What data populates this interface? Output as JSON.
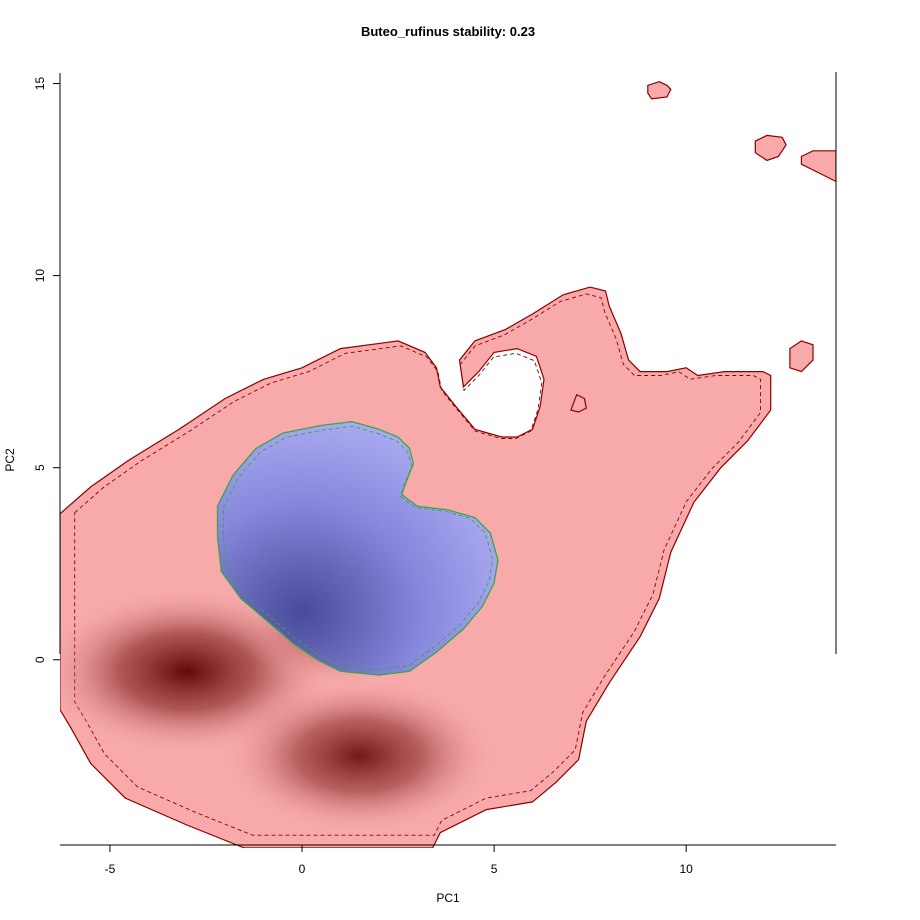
{
  "chart_data": {
    "type": "heatmap",
    "title": "Buteo_rufinus stability: 0.23",
    "xlabel": "PC1",
    "ylabel": "PC2",
    "xlim": [
      -6.3,
      13.9
    ],
    "ylim": [
      -4.9,
      15.3
    ],
    "x_ticks": [
      -5,
      0,
      5,
      10
    ],
    "y_ticks": [
      0,
      5,
      10,
      15
    ],
    "x_tick_labels": [
      "-5",
      "0",
      "5",
      "10"
    ],
    "y_tick_labels": [
      "0",
      "5",
      "10",
      "15"
    ],
    "regions": [
      {
        "name": "red",
        "fill": "#f8aaaa",
        "outline": "#8b0000",
        "polygon": [
          [
            -6.3,
            3.8
          ],
          [
            -5.5,
            4.5
          ],
          [
            -4.5,
            5.2
          ],
          [
            -3.2,
            6.0
          ],
          [
            -2.0,
            6.8
          ],
          [
            -1.0,
            7.3
          ],
          [
            0,
            7.6
          ],
          [
            1.0,
            8.1
          ],
          [
            2.5,
            8.3
          ],
          [
            3.2,
            8.0
          ],
          [
            3.5,
            7.6
          ],
          [
            3.6,
            7.1
          ],
          [
            4.0,
            6.6
          ],
          [
            4.5,
            6.0
          ],
          [
            5.2,
            5.8
          ],
          [
            5.6,
            5.8
          ],
          [
            6.0,
            6.0
          ],
          [
            6.2,
            6.6
          ],
          [
            6.3,
            7.3
          ],
          [
            6.1,
            7.9
          ],
          [
            5.6,
            8.1
          ],
          [
            5.0,
            8.0
          ],
          [
            4.6,
            7.5
          ],
          [
            4.2,
            7.1
          ],
          [
            4.1,
            7.8
          ],
          [
            4.5,
            8.3
          ],
          [
            5.3,
            8.6
          ],
          [
            6.0,
            9.0
          ],
          [
            6.8,
            9.5
          ],
          [
            7.5,
            9.7
          ],
          [
            7.9,
            9.6
          ],
          [
            8.0,
            9.2
          ],
          [
            8.3,
            8.5
          ],
          [
            8.5,
            7.8
          ],
          [
            8.8,
            7.5
          ],
          [
            9.5,
            7.5
          ],
          [
            10.0,
            7.6
          ],
          [
            10.3,
            7.4
          ],
          [
            11.0,
            7.5
          ],
          [
            12.0,
            7.5
          ],
          [
            12.2,
            7.4
          ],
          [
            12.2,
            6.5
          ],
          [
            11.6,
            5.7
          ],
          [
            10.9,
            5.0
          ],
          [
            10.2,
            4.1
          ],
          [
            9.6,
            2.8
          ],
          [
            9.3,
            1.6
          ],
          [
            8.8,
            0.6
          ],
          [
            8.0,
            -0.6
          ],
          [
            7.4,
            -1.6
          ],
          [
            7.2,
            -2.6
          ],
          [
            6.6,
            -3.2
          ],
          [
            6.0,
            -3.7
          ],
          [
            4.8,
            -3.9
          ],
          [
            3.6,
            -4.5
          ],
          [
            3.4,
            -4.9
          ],
          [
            -1.5,
            -4.9
          ],
          [
            -3.0,
            -4.3
          ],
          [
            -4.6,
            -3.6
          ],
          [
            -5.5,
            -2.7
          ],
          [
            -6.0,
            -1.8
          ],
          [
            -6.3,
            -1.3
          ]
        ]
      },
      {
        "name": "red-islands",
        "fill": "#f8aaaa",
        "outline": "#8b0000",
        "polygons": [
          [
            [
              9.0,
              14.95
            ],
            [
              9.3,
              15.05
            ],
            [
              9.5,
              14.95
            ],
            [
              9.6,
              14.85
            ],
            [
              9.5,
              14.65
            ],
            [
              9.1,
              14.6
            ],
            [
              9.0,
              14.75
            ]
          ],
          [
            [
              11.8,
              13.5
            ],
            [
              12.1,
              13.65
            ],
            [
              12.5,
              13.6
            ],
            [
              12.6,
              13.4
            ],
            [
              12.4,
              13.1
            ],
            [
              12.1,
              13.0
            ],
            [
              11.8,
              13.2
            ]
          ],
          [
            [
              13.0,
              13.1
            ],
            [
              13.3,
              13.25
            ],
            [
              13.9,
              13.25
            ],
            [
              13.9,
              12.45
            ],
            [
              13.4,
              12.7
            ],
            [
              13.0,
              12.9
            ]
          ],
          [
            [
              12.7,
              8.1
            ],
            [
              13.0,
              8.3
            ],
            [
              13.3,
              8.2
            ],
            [
              13.3,
              7.8
            ],
            [
              13.0,
              7.5
            ],
            [
              12.7,
              7.6
            ]
          ],
          [
            [
              7.0,
              6.5
            ],
            [
              7.15,
              6.9
            ],
            [
              7.35,
              6.8
            ],
            [
              7.4,
              6.55
            ],
            [
              7.2,
              6.45
            ]
          ]
        ]
      },
      {
        "name": "blue",
        "fill": "#a7a7ee",
        "outline": "#3aa64a",
        "polygon": [
          [
            -2.2,
            4.0
          ],
          [
            -1.8,
            4.8
          ],
          [
            -1.2,
            5.5
          ],
          [
            -0.5,
            5.9
          ],
          [
            0.5,
            6.1
          ],
          [
            1.3,
            6.2
          ],
          [
            2.0,
            6.0
          ],
          [
            2.5,
            5.8
          ],
          [
            2.8,
            5.5
          ],
          [
            2.9,
            5.1
          ],
          [
            2.7,
            4.6
          ],
          [
            2.6,
            4.3
          ],
          [
            3.0,
            4.0
          ],
          [
            3.8,
            3.9
          ],
          [
            4.5,
            3.7
          ],
          [
            4.9,
            3.3
          ],
          [
            5.1,
            2.6
          ],
          [
            5.0,
            2.0
          ],
          [
            4.7,
            1.4
          ],
          [
            4.2,
            0.8
          ],
          [
            3.5,
            0.2
          ],
          [
            2.8,
            -0.3
          ],
          [
            2.0,
            -0.4
          ],
          [
            1.0,
            -0.3
          ],
          [
            0.4,
            0
          ],
          [
            -0.2,
            0.4
          ],
          [
            -0.9,
            1.0
          ],
          [
            -1.6,
            1.6
          ],
          [
            -2.1,
            2.3
          ],
          [
            -2.2,
            3.2
          ]
        ]
      }
    ],
    "density_peaks": [
      {
        "x": -3.0,
        "y": -0.3,
        "strength": 1.0
      },
      {
        "x": 1.5,
        "y": -2.5,
        "strength": 0.9
      },
      {
        "x": 1.0,
        "y": 0.8,
        "strength": 0.55
      }
    ],
    "colors": {
      "background": "#ffffff",
      "red_fill": "#f8aaaa",
      "red_dark": "#5a0000",
      "blue_fill": "#a7a7ee",
      "blue_dark": "#4a4a9a",
      "outline_red": "#8b0000",
      "outline_green": "#3aa64a"
    }
  }
}
